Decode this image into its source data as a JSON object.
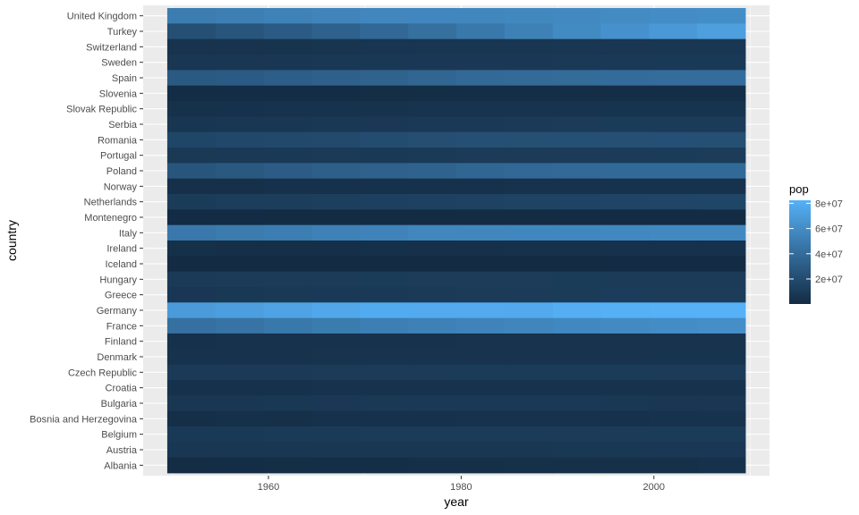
{
  "chart_data": {
    "type": "heatmap",
    "xlabel": "year",
    "ylabel": "country",
    "x": [
      1952,
      1957,
      1962,
      1967,
      1972,
      1977,
      1982,
      1987,
      1992,
      1997,
      2002,
      2007
    ],
    "xlim": [
      1947,
      2012
    ],
    "x_ticks": [
      1960,
      1980,
      2000
    ],
    "countries": [
      "United Kingdom",
      "Turkey",
      "Switzerland",
      "Sweden",
      "Spain",
      "Slovenia",
      "Slovak Republic",
      "Serbia",
      "Romania",
      "Portugal",
      "Poland",
      "Norway",
      "Netherlands",
      "Montenegro",
      "Italy",
      "Ireland",
      "Iceland",
      "Hungary",
      "Greece",
      "Germany",
      "France",
      "Finland",
      "Denmark",
      "Czech Republic",
      "Croatia",
      "Bulgaria",
      "Bosnia and Herzegovina",
      "Belgium",
      "Austria",
      "Albania"
    ],
    "pop": [
      [
        50430000,
        51430000,
        53290000,
        54960000,
        56080000,
        56180000,
        56340000,
        56980000,
        57870000,
        58810000,
        59910000,
        60780000
      ],
      [
        22240000,
        25670000,
        29790000,
        33410000,
        37490000,
        42400000,
        47330000,
        52880000,
        58180000,
        63050000,
        67310000,
        71160000
      ],
      [
        4820000,
        5130000,
        5670000,
        6060000,
        6400000,
        6320000,
        6470000,
        6650000,
        6990000,
        7190000,
        7360000,
        7550000
      ],
      [
        7120000,
        7360000,
        7560000,
        7870000,
        8120000,
        8250000,
        8330000,
        8420000,
        8720000,
        8900000,
        8950000,
        9030000
      ],
      [
        28550000,
        29840000,
        31160000,
        32850000,
        34510000,
        36440000,
        37980000,
        38880000,
        39550000,
        39860000,
        40150000,
        40450000
      ],
      [
        1490000,
        1530000,
        1580000,
        1650000,
        1690000,
        1750000,
        1860000,
        1940000,
        2000000,
        2010000,
        2010000,
        2010000
      ],
      [
        3560000,
        3840000,
        4240000,
        4440000,
        4590000,
        4830000,
        5050000,
        5200000,
        5300000,
        5380000,
        5410000,
        5450000
      ],
      [
        6740000,
        7070000,
        7620000,
        7970000,
        8310000,
        8690000,
        9030000,
        9230000,
        9830000,
        10340000,
        10110000,
        10150000
      ],
      [
        16630000,
        17830000,
        18680000,
        19280000,
        20660000,
        21660000,
        22360000,
        22690000,
        22800000,
        22560000,
        22400000,
        22280000
      ],
      [
        8530000,
        8820000,
        9020000,
        9100000,
        8970000,
        9660000,
        9860000,
        9920000,
        9930000,
        10160000,
        10430000,
        10640000
      ],
      [
        25730000,
        28240000,
        30330000,
        31790000,
        33040000,
        34620000,
        36230000,
        37740000,
        38370000,
        38650000,
        38630000,
        38520000
      ],
      [
        3330000,
        3490000,
        3640000,
        3790000,
        3930000,
        4040000,
        4110000,
        4190000,
        4290000,
        4410000,
        4540000,
        4630000
      ],
      [
        10380000,
        11030000,
        11800000,
        12600000,
        13330000,
        13850000,
        14310000,
        14670000,
        15170000,
        15600000,
        16120000,
        16570000
      ],
      [
        410000,
        440000,
        470000,
        500000,
        530000,
        570000,
        560000,
        570000,
        570000,
        610000,
        630000,
        680000
      ],
      [
        47670000,
        49180000,
        50840000,
        52670000,
        54370000,
        56060000,
        56540000,
        56730000,
        56840000,
        57480000,
        57930000,
        58150000
      ],
      [
        2950000,
        2880000,
        2830000,
        2900000,
        3020000,
        3270000,
        3480000,
        3540000,
        3560000,
        3670000,
        3880000,
        4110000
      ],
      [
        150000,
        170000,
        180000,
        200000,
        210000,
        220000,
        230000,
        240000,
        260000,
        270000,
        290000,
        300000
      ],
      [
        9500000,
        9840000,
        10060000,
        10220000,
        10390000,
        10640000,
        10710000,
        10640000,
        10350000,
        10240000,
        10080000,
        9960000
      ],
      [
        7730000,
        8100000,
        8450000,
        8720000,
        8890000,
        9310000,
        9790000,
        9970000,
        10330000,
        10500000,
        10600000,
        10710000
      ],
      [
        69150000,
        71020000,
        73740000,
        76370000,
        78720000,
        78160000,
        78340000,
        77720000,
        80600000,
        82010000,
        82350000,
        82400000
      ],
      [
        42460000,
        44310000,
        47120000,
        49570000,
        51730000,
        53170000,
        54430000,
        55630000,
        57370000,
        58620000,
        59930000,
        61080000
      ],
      [
        4090000,
        4320000,
        4490000,
        4610000,
        4640000,
        4740000,
        4830000,
        4930000,
        5040000,
        5130000,
        5190000,
        5240000
      ],
      [
        4330000,
        4490000,
        4650000,
        4840000,
        4990000,
        5090000,
        5120000,
        5130000,
        5170000,
        5280000,
        5370000,
        5470000
      ],
      [
        9130000,
        9510000,
        9620000,
        9840000,
        9860000,
        10160000,
        10300000,
        10310000,
        10320000,
        10300000,
        10260000,
        10230000
      ],
      [
        3880000,
        3990000,
        4080000,
        4170000,
        4230000,
        4320000,
        4410000,
        4480000,
        4490000,
        4440000,
        4480000,
        4490000
      ],
      [
        7270000,
        7650000,
        8010000,
        8310000,
        8580000,
        8800000,
        8890000,
        8970000,
        8660000,
        8070000,
        7660000,
        7320000
      ],
      [
        2790000,
        3080000,
        3350000,
        3590000,
        3820000,
        4090000,
        4170000,
        4340000,
        4260000,
        3610000,
        4170000,
        4550000
      ],
      [
        8730000,
        8990000,
        9220000,
        9560000,
        9710000,
        9820000,
        9860000,
        9870000,
        10050000,
        10200000,
        10310000,
        10390000
      ],
      [
        6930000,
        6970000,
        7130000,
        7380000,
        7540000,
        7570000,
        7570000,
        7580000,
        7910000,
        8070000,
        8150000,
        8200000
      ],
      [
        1280000,
        1480000,
        1730000,
        1980000,
        2260000,
        2510000,
        2780000,
        3080000,
        3330000,
        3430000,
        3510000,
        3600000
      ]
    ],
    "legend": {
      "title": "pop",
      "position": "right",
      "breaks": [
        20000000,
        40000000,
        60000000,
        80000000
      ],
      "labels": [
        "2e+07",
        "4e+07",
        "6e+07",
        "8e+07"
      ],
      "range": [
        150000,
        82400000
      ]
    },
    "colors": {
      "low": "#132B43",
      "high": "#56B1F7",
      "panel_background": "#EBEBEB",
      "grid": "#FFFFFF"
    },
    "grid": true
  }
}
